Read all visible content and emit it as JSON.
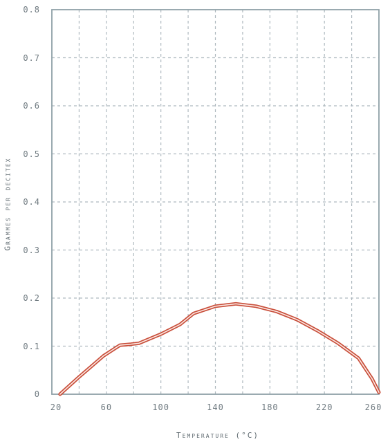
{
  "colors": {
    "plot_border": "#8fa1a8",
    "grid": "#aeb9bf",
    "line_outer": "#c94f3b",
    "line_inner": "#fbe9e4",
    "text": "#6f7a80"
  },
  "chart_data": {
    "type": "line",
    "title": "",
    "xlabel": "Temperature (°C)",
    "ylabel": "Grammes per decitex",
    "xlim": [
      20,
      260
    ],
    "ylim": [
      0,
      0.8
    ],
    "x_ticks": [
      20,
      60,
      100,
      140,
      180,
      220,
      260
    ],
    "x_tick_labels": [
      "20",
      "60",
      "100",
      "140",
      "180",
      "220",
      "260"
    ],
    "y_ticks": [
      0,
      0.1,
      0.2,
      0.3,
      0.4,
      0.5,
      0.6,
      0.7,
      0.8
    ],
    "y_tick_labels": [
      "0",
      "0.1",
      "0.2",
      "0.3",
      "0.4",
      "0.5",
      "0.6",
      "0.7",
      "0.8"
    ],
    "grid": true,
    "series": [
      {
        "x": [
          26,
          40,
          58,
          70,
          78,
          84,
          100,
          114,
          124,
          140,
          155,
          170,
          185,
          200,
          215,
          230,
          245,
          255,
          260
        ],
        "y": [
          0,
          0.036,
          0.08,
          0.102,
          0.104,
          0.106,
          0.125,
          0.145,
          0.168,
          0.183,
          0.188,
          0.183,
          0.172,
          0.155,
          0.132,
          0.106,
          0.075,
          0.032,
          0.004
        ]
      }
    ]
  }
}
